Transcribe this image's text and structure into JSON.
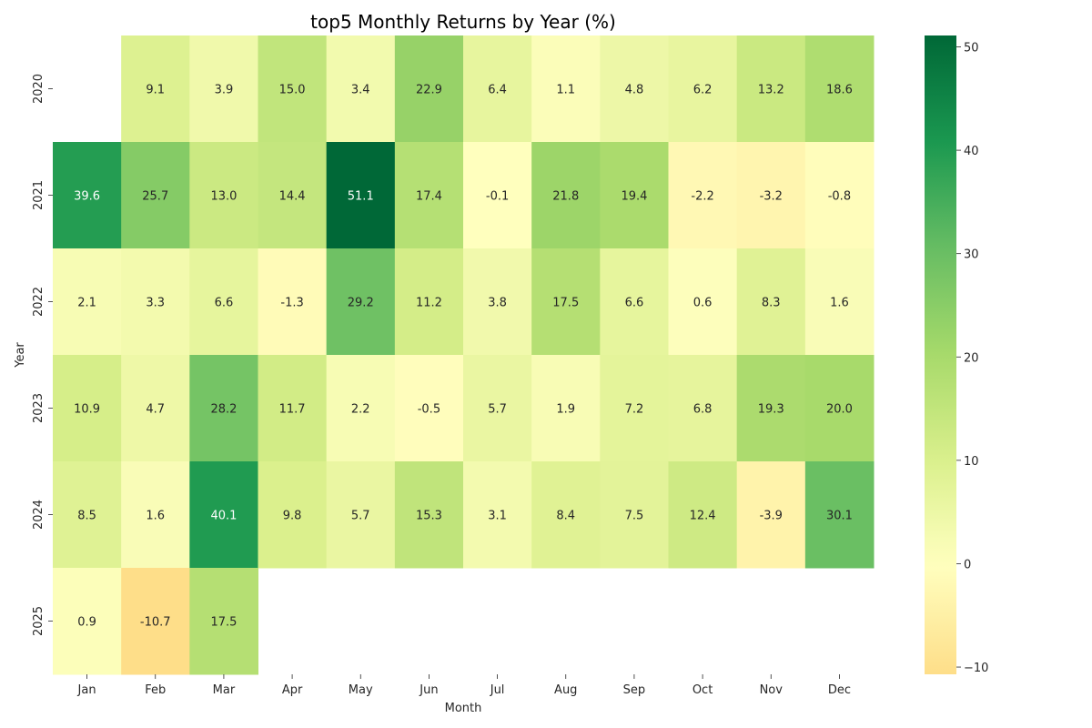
{
  "chart_data": {
    "type": "heatmap",
    "title": "top5 Monthly Returns by Year (%)",
    "xlabel": "Month",
    "ylabel": "Year",
    "columns": [
      "Jan",
      "Feb",
      "Mar",
      "Apr",
      "May",
      "Jun",
      "Jul",
      "Aug",
      "Sep",
      "Oct",
      "Nov",
      "Dec"
    ],
    "rows": [
      "2020",
      "2021",
      "2022",
      "2023",
      "2024",
      "2025"
    ],
    "values": [
      [
        null,
        9.1,
        3.9,
        15.0,
        3.4,
        22.9,
        6.4,
        1.1,
        4.8,
        6.2,
        13.2,
        18.6
      ],
      [
        39.6,
        25.7,
        13.0,
        14.4,
        51.1,
        17.4,
        -0.1,
        21.8,
        19.4,
        -2.2,
        -3.2,
        -0.8
      ],
      [
        2.1,
        3.3,
        6.6,
        -1.3,
        29.2,
        11.2,
        3.8,
        17.5,
        6.6,
        0.6,
        8.3,
        1.6
      ],
      [
        10.9,
        4.7,
        28.2,
        11.7,
        2.2,
        -0.5,
        5.7,
        1.9,
        7.2,
        6.8,
        19.3,
        20.0
      ],
      [
        8.5,
        1.6,
        40.1,
        9.8,
        5.7,
        15.3,
        3.1,
        8.4,
        7.5,
        12.4,
        -3.9,
        30.1
      ],
      [
        0.9,
        -10.7,
        17.5,
        null,
        null,
        null,
        null,
        null,
        null,
        null,
        null,
        null
      ]
    ],
    "colorbar": {
      "min": -10.7,
      "max": 51.1,
      "center": 0,
      "ticks": [
        -10,
        0,
        10,
        20,
        30,
        40,
        50
      ],
      "tick_labels": [
        "−10",
        "0",
        "10",
        "20",
        "30",
        "40",
        "50"
      ],
      "colormap": "RdYlGn (centered at 0)"
    },
    "grid": false,
    "legend": "colorbar-right"
  }
}
